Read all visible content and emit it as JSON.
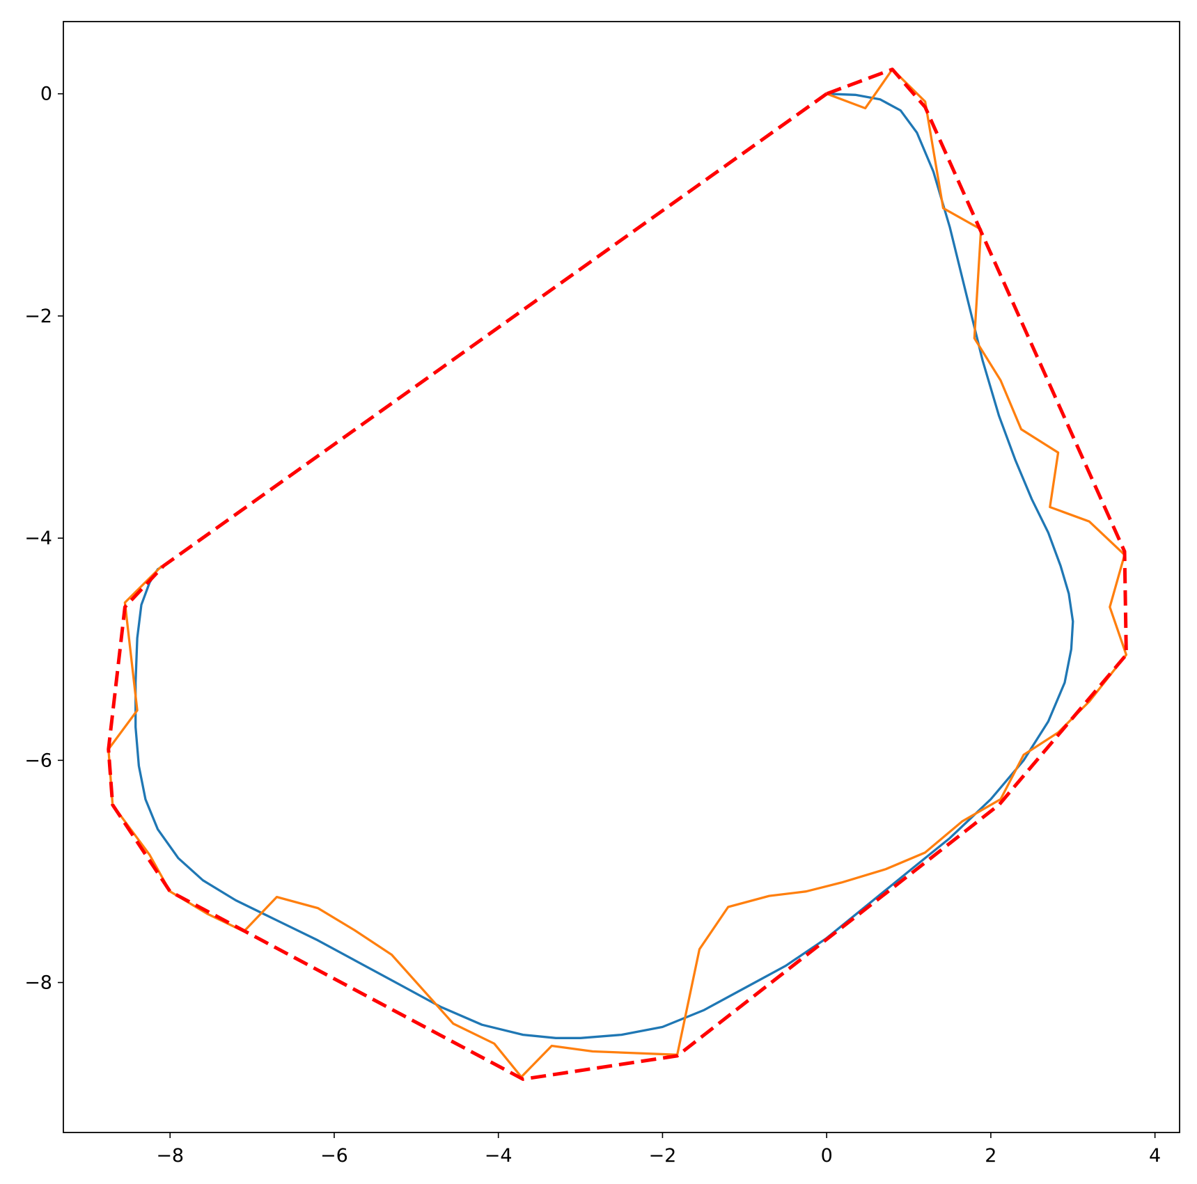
{
  "chart_data": {
    "type": "line",
    "title": "",
    "xlabel": "",
    "ylabel": "",
    "xlim": [
      -9.3,
      4.3
    ],
    "ylim": [
      -9.35,
      0.65
    ],
    "grid": false,
    "legend": "none",
    "x_ticks": [
      -8,
      -6,
      -4,
      -2,
      0,
      2,
      4
    ],
    "y_ticks": [
      0,
      -2,
      -4,
      -6,
      -8
    ],
    "x_tick_labels": [
      "−8",
      "−6",
      "−4",
      "−2",
      "0",
      "2",
      "4"
    ],
    "y_tick_labels": [
      "0",
      "−2",
      "−4",
      "−6",
      "−8"
    ],
    "series": [
      {
        "color": "#1f77b4",
        "style": "solid",
        "points": [
          [
            0.0,
            0.0
          ],
          [
            0.35,
            -0.01
          ],
          [
            0.65,
            -0.05
          ],
          [
            0.9,
            -0.15
          ],
          [
            1.1,
            -0.35
          ],
          [
            1.3,
            -0.7
          ],
          [
            1.5,
            -1.2
          ],
          [
            1.7,
            -1.8
          ],
          [
            1.9,
            -2.4
          ],
          [
            2.1,
            -2.9
          ],
          [
            2.3,
            -3.3
          ],
          [
            2.5,
            -3.65
          ],
          [
            2.7,
            -3.95
          ],
          [
            2.85,
            -4.25
          ],
          [
            2.95,
            -4.5
          ],
          [
            3.0,
            -4.75
          ],
          [
            2.98,
            -5.0
          ],
          [
            2.9,
            -5.3
          ],
          [
            2.7,
            -5.65
          ],
          [
            2.4,
            -6.0
          ],
          [
            2.0,
            -6.35
          ],
          [
            1.5,
            -6.7
          ],
          [
            1.0,
            -7.0
          ],
          [
            0.5,
            -7.3
          ],
          [
            0.0,
            -7.6
          ],
          [
            -0.5,
            -7.85
          ],
          [
            -1.0,
            -8.05
          ],
          [
            -1.5,
            -8.25
          ],
          [
            -2.0,
            -8.4
          ],
          [
            -2.5,
            -8.47
          ],
          [
            -3.0,
            -8.5
          ],
          [
            -3.3,
            -8.5
          ],
          [
            -3.7,
            -8.47
          ],
          [
            -4.2,
            -8.38
          ],
          [
            -4.7,
            -8.22
          ],
          [
            -5.2,
            -8.02
          ],
          [
            -5.7,
            -7.82
          ],
          [
            -6.2,
            -7.62
          ],
          [
            -6.7,
            -7.44
          ],
          [
            -7.2,
            -7.26
          ],
          [
            -7.6,
            -7.08
          ],
          [
            -7.9,
            -6.88
          ],
          [
            -8.15,
            -6.62
          ],
          [
            -8.3,
            -6.35
          ],
          [
            -8.38,
            -6.05
          ],
          [
            -8.42,
            -5.7
          ],
          [
            -8.42,
            -5.3
          ],
          [
            -8.4,
            -4.9
          ],
          [
            -8.35,
            -4.6
          ],
          [
            -8.25,
            -4.4
          ],
          [
            -8.15,
            -4.28
          ],
          [
            -8.08,
            -4.25
          ]
        ]
      },
      {
        "color": "#ff7f0e",
        "style": "solid",
        "points": [
          [
            0.0,
            0.0
          ],
          [
            0.47,
            -0.13
          ],
          [
            0.8,
            0.22
          ],
          [
            1.2,
            -0.07
          ],
          [
            1.42,
            -1.03
          ],
          [
            1.88,
            -1.22
          ],
          [
            1.8,
            -2.2
          ],
          [
            2.12,
            -2.58
          ],
          [
            2.37,
            -3.02
          ],
          [
            2.82,
            -3.23
          ],
          [
            2.72,
            -3.72
          ],
          [
            3.2,
            -3.85
          ],
          [
            3.63,
            -4.15
          ],
          [
            3.45,
            -4.62
          ],
          [
            3.65,
            -5.05
          ],
          [
            3.2,
            -5.47
          ],
          [
            2.82,
            -5.75
          ],
          [
            2.4,
            -5.95
          ],
          [
            2.12,
            -6.35
          ],
          [
            1.65,
            -6.55
          ],
          [
            1.2,
            -6.83
          ],
          [
            0.72,
            -6.98
          ],
          [
            0.18,
            -7.1
          ],
          [
            -0.25,
            -7.18
          ],
          [
            -0.7,
            -7.22
          ],
          [
            -1.2,
            -7.32
          ],
          [
            -1.55,
            -7.7
          ],
          [
            -1.82,
            -8.65
          ],
          [
            -2.85,
            -8.62
          ],
          [
            -3.35,
            -8.57
          ],
          [
            -3.72,
            -8.85
          ],
          [
            -4.05,
            -8.55
          ],
          [
            -4.55,
            -8.37
          ],
          [
            -5.3,
            -7.75
          ],
          [
            -5.75,
            -7.53
          ],
          [
            -6.2,
            -7.33
          ],
          [
            -6.7,
            -7.23
          ],
          [
            -7.1,
            -7.54
          ],
          [
            -7.55,
            -7.38
          ],
          [
            -8.0,
            -7.18
          ],
          [
            -8.25,
            -6.85
          ],
          [
            -8.7,
            -6.4
          ],
          [
            -8.75,
            -5.9
          ],
          [
            -8.4,
            -5.55
          ],
          [
            -8.55,
            -4.58
          ],
          [
            -8.1,
            -4.25
          ]
        ]
      },
      {
        "color": "#ff0000",
        "style": "dashed",
        "points": [
          [
            0.0,
            0.0
          ],
          [
            0.8,
            0.22
          ],
          [
            1.2,
            -0.12
          ],
          [
            3.63,
            -4.12
          ],
          [
            3.65,
            -5.05
          ],
          [
            2.1,
            -6.4
          ],
          [
            1.2,
            -6.92
          ],
          [
            -1.82,
            -8.66
          ],
          [
            -3.7,
            -8.87
          ],
          [
            -8.0,
            -7.18
          ],
          [
            -8.7,
            -6.4
          ],
          [
            -8.75,
            -5.9
          ],
          [
            -8.55,
            -4.62
          ],
          [
            -8.08,
            -4.25
          ],
          [
            0.0,
            0.0
          ]
        ]
      }
    ]
  }
}
